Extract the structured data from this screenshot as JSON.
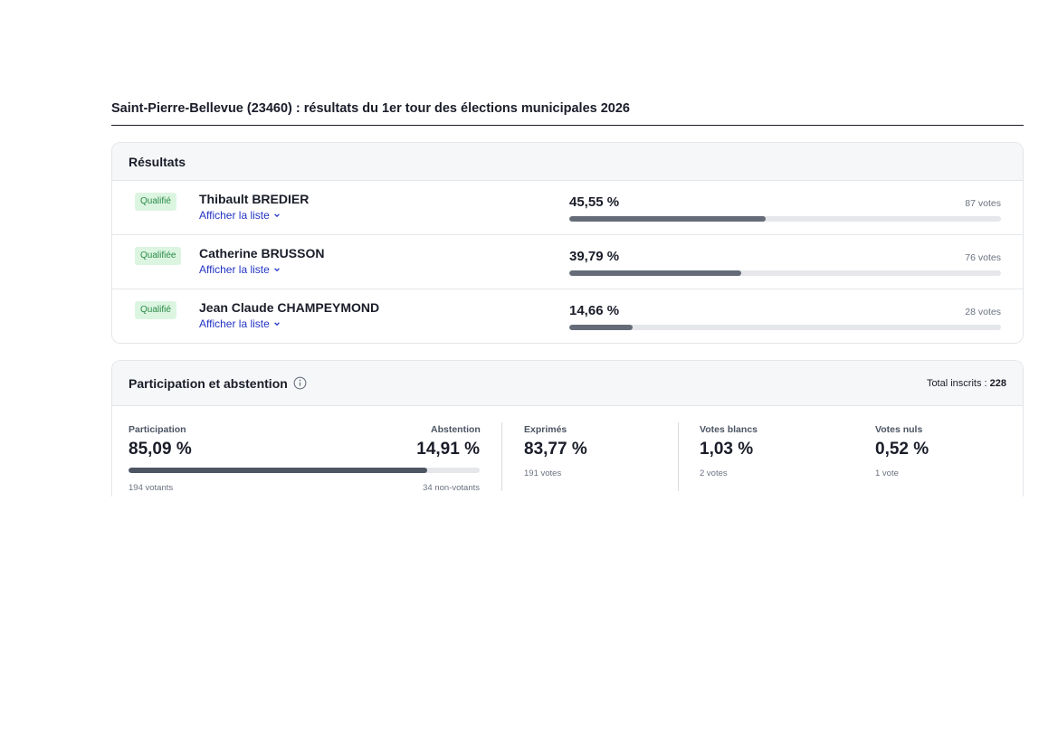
{
  "page": {
    "title": "Saint-Pierre-Bellevue (23460) : résultats du 1er tour des élections municipales 2026"
  },
  "results": {
    "header": "Résultats",
    "link_label": "Afficher la liste",
    "candidates": [
      {
        "badge": "Qualifié",
        "name": "Thibault BREDIER",
        "percent_label": "45,55 %",
        "percent": 45.55,
        "votes_label": "87 votes"
      },
      {
        "badge": "Qualifiée",
        "name": "Catherine BRUSSON",
        "percent_label": "39,79 %",
        "percent": 39.79,
        "votes_label": "76 votes"
      },
      {
        "badge": "Qualifié",
        "name": "Jean Claude CHAMPEYMOND",
        "percent_label": "14,66 %",
        "percent": 14.66,
        "votes_label": "28 votes"
      }
    ]
  },
  "participation": {
    "header": "Participation et abstention",
    "total_label": "Total inscrits :",
    "total_value": "228",
    "participation_label": "Participation",
    "participation_value": "85,09 %",
    "participation_percent": 85.09,
    "participation_sub": "194 votants",
    "abstention_label": "Abstention",
    "abstention_value": "14,91 %",
    "abstention_sub": "34 non-votants",
    "exprimes_label": "Exprimés",
    "exprimes_value": "83,77 %",
    "exprimes_sub": "191 votes",
    "blancs_label": "Votes blancs",
    "blancs_value": "1,03 %",
    "blancs_sub": "2 votes",
    "nuls_label": "Votes nuls",
    "nuls_value": "0,52 %",
    "nuls_sub": "1 vote"
  },
  "icons": {
    "info": "info-icon",
    "chevron": "chevron-down-icon"
  },
  "colors": {
    "qualified_bg": "#dcf5e1",
    "qualified_text": "#2a8a45",
    "link": "#2233c4",
    "bar": "#656c78"
  }
}
